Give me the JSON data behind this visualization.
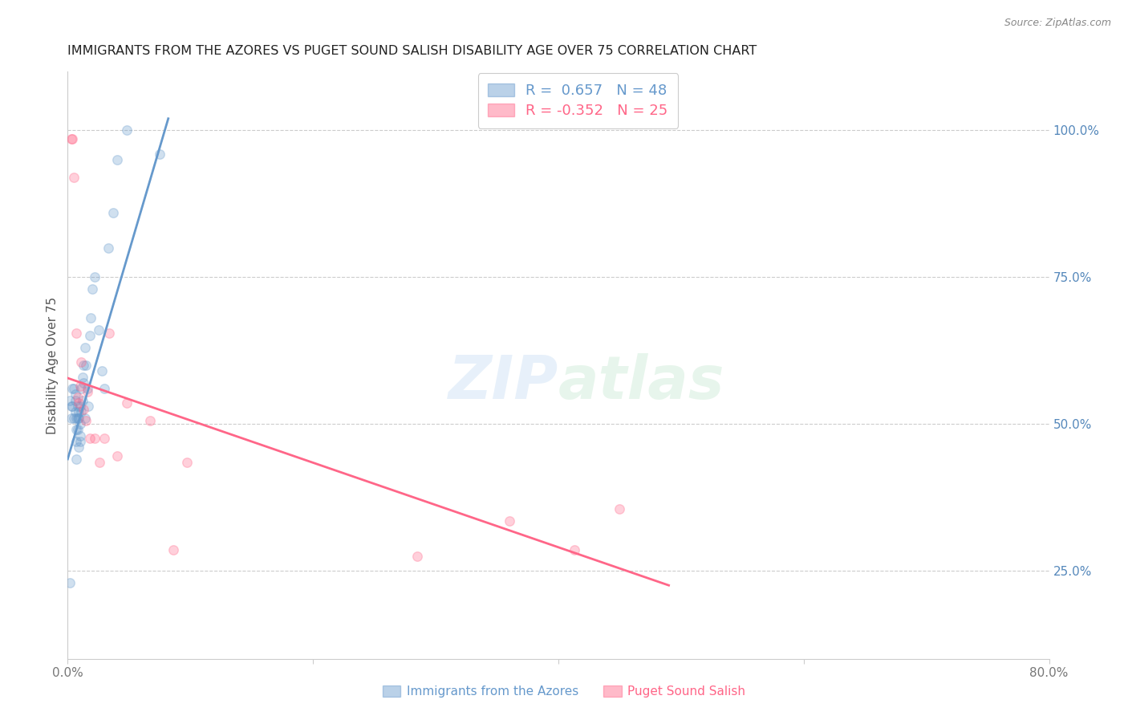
{
  "title": "IMMIGRANTS FROM THE AZORES VS PUGET SOUND SALISH DISABILITY AGE OVER 75 CORRELATION CHART",
  "source": "Source: ZipAtlas.com",
  "ylabel": "Disability Age Over 75",
  "right_ytick_labels": [
    "25.0%",
    "50.0%",
    "75.0%",
    "100.0%"
  ],
  "right_ytick_values": [
    0.25,
    0.5,
    0.75,
    1.0
  ],
  "xlim": [
    0.0,
    0.8
  ],
  "ylim": [
    0.1,
    1.1
  ],
  "xtick_labels": [
    "0.0%",
    "",
    "",
    "",
    "80.0%"
  ],
  "xtick_values": [
    0.0,
    0.2,
    0.4,
    0.6,
    0.8
  ],
  "watermark_line1": "ZIP",
  "watermark_line2": "atlas",
  "blue_color": "#6699CC",
  "pink_color": "#FF6688",
  "blue_label": "Immigrants from the Azores",
  "pink_label": "Puget Sound Salish",
  "blue_R": 0.657,
  "blue_N": 48,
  "pink_R": -0.352,
  "pink_N": 25,
  "blue_scatter_x": [
    0.002,
    0.003,
    0.003,
    0.004,
    0.004,
    0.005,
    0.005,
    0.006,
    0.006,
    0.006,
    0.007,
    0.007,
    0.007,
    0.007,
    0.008,
    0.008,
    0.008,
    0.009,
    0.009,
    0.009,
    0.01,
    0.01,
    0.01,
    0.01,
    0.011,
    0.011,
    0.012,
    0.012,
    0.013,
    0.013,
    0.014,
    0.014,
    0.015,
    0.016,
    0.017,
    0.018,
    0.019,
    0.02,
    0.022,
    0.025,
    0.028,
    0.03,
    0.033,
    0.037,
    0.04,
    0.048,
    0.075,
    0.002
  ],
  "blue_scatter_y": [
    0.54,
    0.53,
    0.51,
    0.56,
    0.53,
    0.56,
    0.51,
    0.55,
    0.54,
    0.52,
    0.51,
    0.49,
    0.47,
    0.44,
    0.53,
    0.51,
    0.49,
    0.46,
    0.52,
    0.51,
    0.48,
    0.5,
    0.47,
    0.53,
    0.52,
    0.56,
    0.54,
    0.58,
    0.57,
    0.6,
    0.51,
    0.63,
    0.6,
    0.56,
    0.53,
    0.65,
    0.68,
    0.73,
    0.75,
    0.66,
    0.59,
    0.56,
    0.8,
    0.86,
    0.95,
    1.0,
    0.96,
    0.23
  ],
  "pink_scatter_x": [
    0.003,
    0.004,
    0.005,
    0.007,
    0.008,
    0.009,
    0.01,
    0.011,
    0.013,
    0.015,
    0.016,
    0.018,
    0.022,
    0.026,
    0.03,
    0.034,
    0.04,
    0.048,
    0.067,
    0.086,
    0.097,
    0.285,
    0.36,
    0.413,
    0.45
  ],
  "pink_scatter_y": [
    0.985,
    0.985,
    0.92,
    0.655,
    0.545,
    0.535,
    0.565,
    0.605,
    0.525,
    0.505,
    0.555,
    0.475,
    0.475,
    0.435,
    0.475,
    0.655,
    0.445,
    0.535,
    0.505,
    0.285,
    0.435,
    0.275,
    0.335,
    0.285,
    0.355
  ],
  "blue_trend_x": [
    0.0,
    0.082
  ],
  "blue_trend_y": [
    0.44,
    1.02
  ],
  "pink_trend_x": [
    0.0,
    0.49
  ],
  "pink_trend_y": [
    0.578,
    0.225
  ],
  "grid_color": "#CCCCCC",
  "background_color": "#FFFFFF",
  "title_color": "#222222",
  "right_axis_color": "#5588BB",
  "marker_size": 70,
  "marker_alpha": 0.3,
  "marker_linewidth": 1.0
}
